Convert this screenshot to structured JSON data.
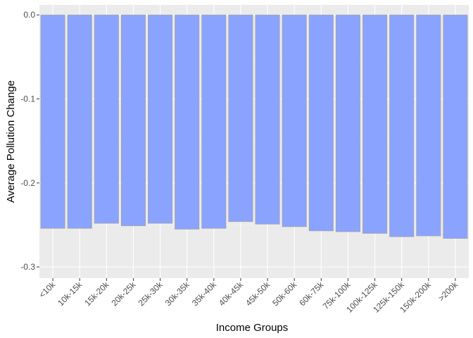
{
  "chart_data": {
    "type": "bar",
    "title": "",
    "xlabel": "Income Groups",
    "ylabel": "Average Pollution Change",
    "categories": [
      "<10k",
      "10k-15k",
      "15k-20k",
      "20k-25k",
      "25k-30k",
      "30k-35k",
      "35k-40k",
      "40k-45k",
      "45k-50k",
      "50k-60k",
      "60k-75k",
      "75k-100k",
      "100k-125k",
      "125k-150k",
      "150k-200k",
      ">200k"
    ],
    "values": [
      -0.254,
      -0.254,
      -0.248,
      -0.251,
      -0.248,
      -0.255,
      -0.254,
      -0.246,
      -0.249,
      -0.252,
      -0.257,
      -0.258,
      -0.26,
      -0.264,
      -0.263,
      -0.266
    ],
    "ylim": [
      -0.3133,
      0.0119
    ],
    "yticks": [
      0.0,
      -0.1,
      -0.2,
      -0.3
    ],
    "ytick_labels": [
      "0.0",
      "-0.1",
      "-0.2",
      "-0.3"
    ],
    "grid": true,
    "colors": {
      "bar_fill": "#8aa3ff",
      "bar_stroke": "#a6a6a6",
      "panel_bg": "#ebebeb",
      "grid_major": "#ffffff",
      "grid_minor": "#f2f2f2"
    }
  }
}
